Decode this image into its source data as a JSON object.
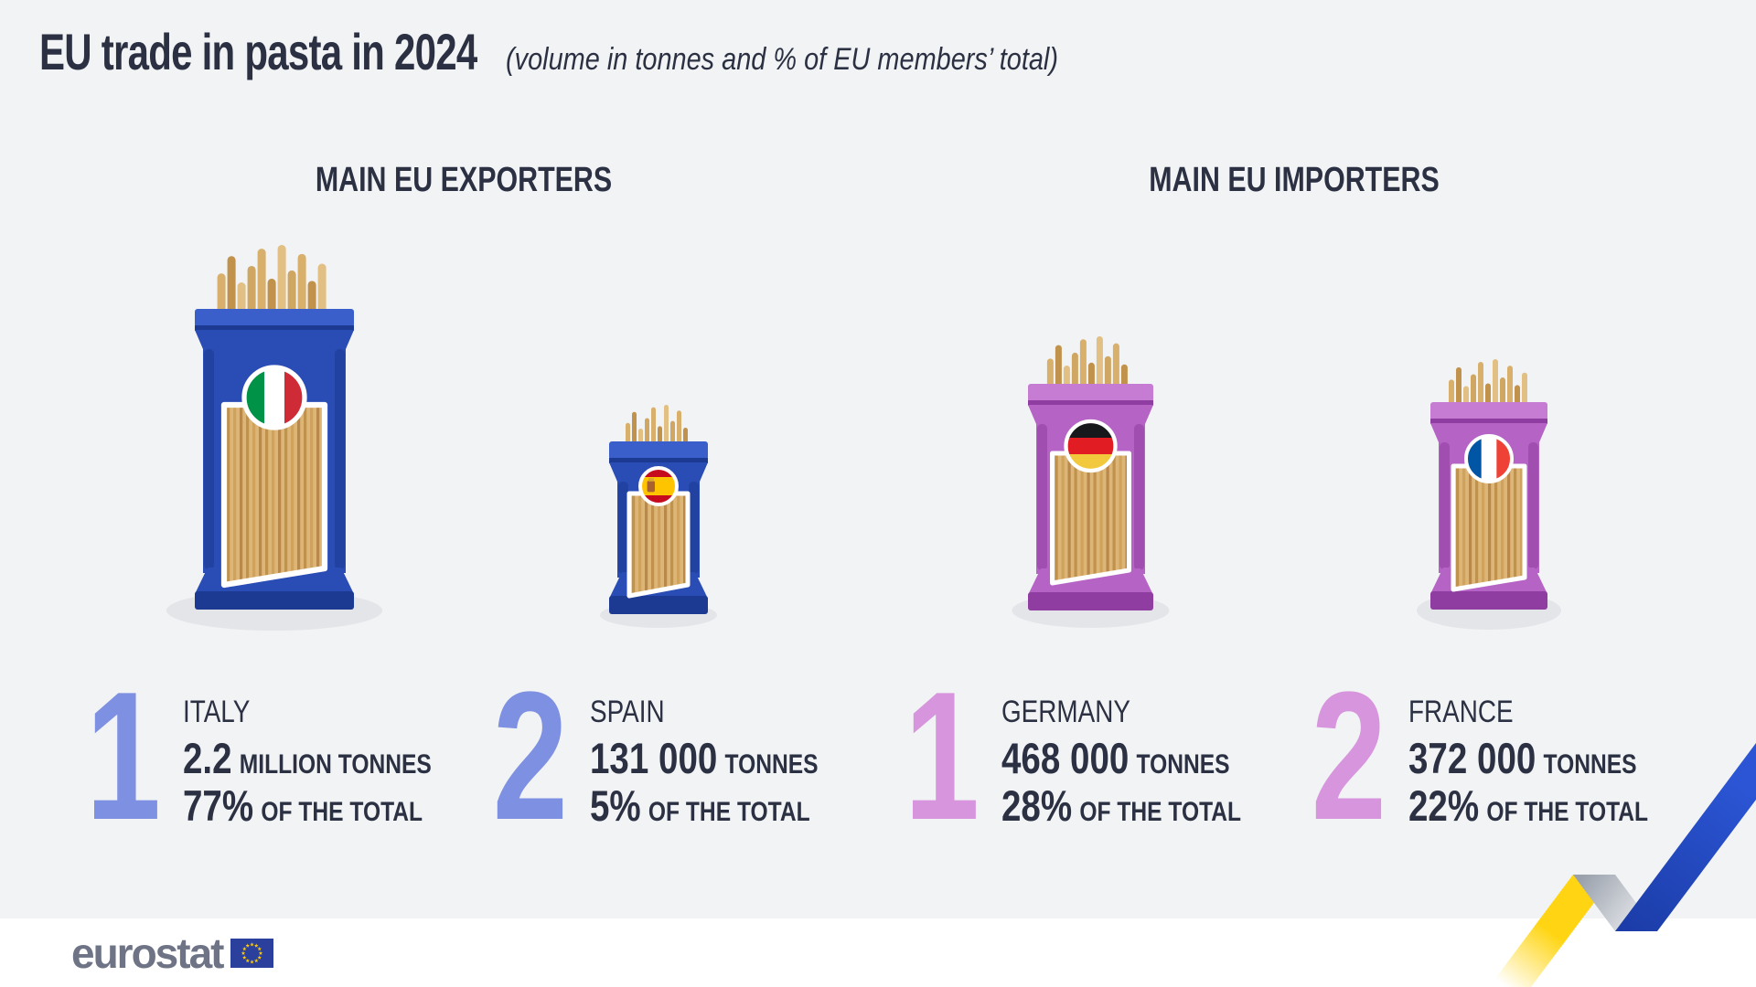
{
  "header": {
    "title": "EU trade in pasta in 2024",
    "subtitle": "(volume in tonnes and % of EU members’ total)"
  },
  "sections": {
    "exporters": {
      "heading": "MAIN EU EXPORTERS"
    },
    "importers": {
      "heading": "MAIN EU IMPORTERS"
    }
  },
  "countries": [
    {
      "rank": "1",
      "name": "ITALY",
      "volume": "2.2",
      "unit": "MILLION TONNES",
      "share": "77%",
      "share_suffix": "OF THE TOTAL",
      "group": "exporters",
      "flag": "italy"
    },
    {
      "rank": "2",
      "name": "SPAIN",
      "volume": "131 000",
      "unit": "TONNES",
      "share": "5%",
      "share_suffix": "OF THE TOTAL",
      "group": "exporters",
      "flag": "spain"
    },
    {
      "rank": "1",
      "name": "GERMANY",
      "volume": "468 000",
      "unit": "TONNES",
      "share": "28%",
      "share_suffix": "OF THE TOTAL",
      "group": "importers",
      "flag": "germany"
    },
    {
      "rank": "2",
      "name": "FRANCE",
      "volume": "372 000",
      "unit": "TONNES",
      "share": "22%",
      "share_suffix": "OF THE TOTAL",
      "group": "importers",
      "flag": "france"
    }
  ],
  "footer": {
    "logo_text": "eurostat"
  },
  "palette": {
    "background": "#f2f3f4",
    "footer_band": "#ffffff",
    "text": "#2b3143",
    "rank_exporter": "#7e90e2",
    "rank_importer": "#d795de",
    "pkg_blue": "#2a4cb5",
    "pkg_blue_dark": "#1c3a92",
    "pkg_blue_light": "#3a5fca",
    "pkg_purple": "#b564c6",
    "pkg_purple_dark": "#8f3da0",
    "pkg_purple_light": "#c77cd4",
    "pasta": "#d8b06c",
    "pasta_dark": "#c1924c",
    "pasta_light": "#e2bf82",
    "window_base": "#dcb577",
    "shadow": "#e3e5e9",
    "ribbon_yellow": "#ffd513",
    "ribbon_blue": "#2b55d4",
    "ribbon_blue_dark": "#1c3da9",
    "ribbon_fold": "#9aa1ac",
    "eu_flag_blue": "#2b3f9d",
    "eu_star_yellow": "#ffcc00",
    "eurostat_gray": "#6e7486"
  },
  "flags": {
    "italy": {
      "orientation": "vertical",
      "colors": [
        "#009246",
        "#ffffff",
        "#ce2b37"
      ]
    },
    "spain": {
      "orientation": "horizontal",
      "colors": [
        "#c60b1e",
        "#ffc400",
        "#c60b1e"
      ],
      "heights": [
        0.25,
        0.5,
        0.25
      ],
      "emblem": true
    },
    "germany": {
      "orientation": "horizontal",
      "colors": [
        "#17181c",
        "#e11c23",
        "#f2c93c"
      ],
      "heights": [
        0.3333,
        0.3333,
        0.3334
      ]
    },
    "france": {
      "orientation": "vertical",
      "colors": [
        "#0055a4",
        "#ffffff",
        "#ef4135"
      ]
    }
  },
  "chart_data": {
    "type": "bar",
    "title": "EU trade in pasta in 2024",
    "subtitle": "(volume in tonnes and % of EU members’ total)",
    "unit": "tonnes",
    "legend_position": "none",
    "grid": false,
    "groups": [
      {
        "name": "MAIN EU EXPORTERS",
        "categories": [
          "Italy",
          "Spain"
        ],
        "values_tonnes": [
          2200000,
          131000
        ],
        "share_of_eu_total_pct": [
          77,
          5
        ],
        "ranks": [
          1,
          2
        ]
      },
      {
        "name": "MAIN EU IMPORTERS",
        "categories": [
          "Germany",
          "France"
        ],
        "values_tonnes": [
          468000,
          372000
        ],
        "share_of_eu_total_pct": [
          28,
          22
        ],
        "ranks": [
          1,
          2
        ]
      }
    ]
  }
}
